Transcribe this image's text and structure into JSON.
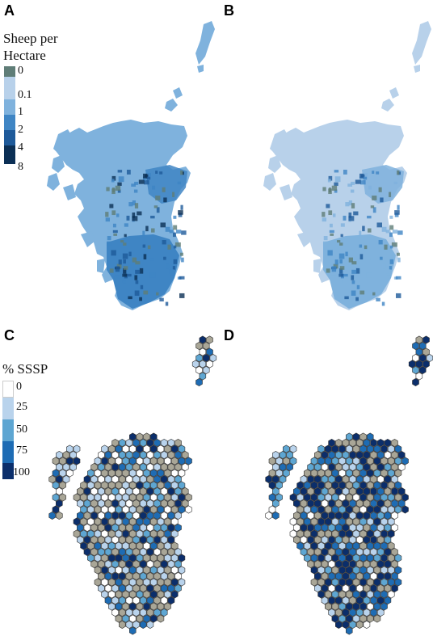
{
  "panels": [
    {
      "letter": "A"
    },
    {
      "letter": "B"
    },
    {
      "letter": "C"
    },
    {
      "letter": "D"
    }
  ],
  "legend_sheep": {
    "title_line1": "Sheep per",
    "title_line2": "Hectare",
    "labels": [
      "0",
      "0.1",
      "1",
      "2",
      "4",
      "8"
    ],
    "colors": [
      "#5f7d77",
      "#b8d1ea",
      "#7fb2dd",
      "#3f85c4",
      "#1e5a9a",
      "#0b2f55"
    ]
  },
  "legend_sssp": {
    "title": "% SSSP",
    "labels": [
      "0",
      "25",
      "50",
      "75",
      "100"
    ],
    "colors": [
      "#ffffff",
      "#b9d3ec",
      "#5ea6d2",
      "#1e6cb4",
      "#0b2e6b"
    ],
    "no_data_color": "#a9a697"
  }
}
